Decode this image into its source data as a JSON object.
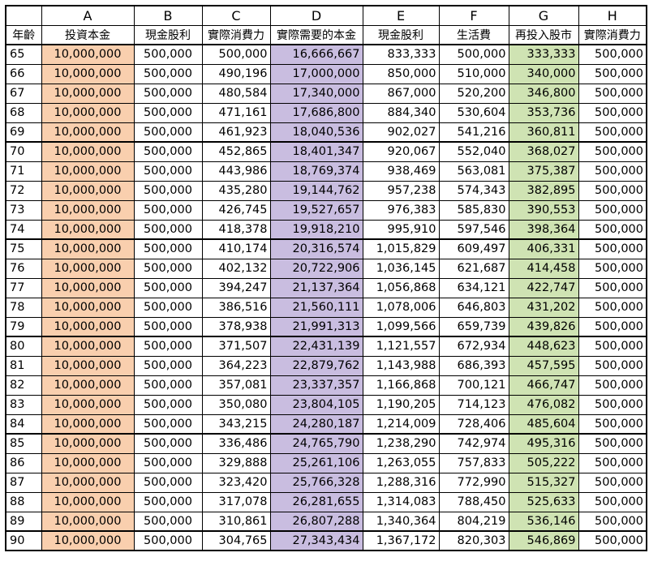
{
  "column_letters": [
    "",
    "A",
    "B",
    "C",
    "D",
    "E",
    "F",
    "G",
    "H"
  ],
  "headers": [
    "年齡",
    "投資本金",
    "現金股利",
    "實際消費力",
    "實際需要的本金",
    "現金股利",
    "生活費",
    "再投入股市",
    "實際消費力"
  ],
  "colors": {
    "A": "#f9cfae",
    "D": "#c9bde0",
    "G": "#cfe3b3"
  },
  "rows": [
    [
      "65",
      "10,000,000",
      "500,000",
      "500,000",
      "16,666,667",
      "833,333",
      "500,000",
      "333,333",
      "500,000"
    ],
    [
      "66",
      "10,000,000",
      "500,000",
      "490,196",
      "17,000,000",
      "850,000",
      "510,000",
      "340,000",
      "500,000"
    ],
    [
      "67",
      "10,000,000",
      "500,000",
      "480,584",
      "17,340,000",
      "867,000",
      "520,200",
      "346,800",
      "500,000"
    ],
    [
      "68",
      "10,000,000",
      "500,000",
      "471,161",
      "17,686,800",
      "884,340",
      "530,604",
      "353,736",
      "500,000"
    ],
    [
      "69",
      "10,000,000",
      "500,000",
      "461,923",
      "18,040,536",
      "902,027",
      "541,216",
      "360,811",
      "500,000"
    ],
    [
      "70",
      "10,000,000",
      "500,000",
      "452,865",
      "18,401,347",
      "920,067",
      "552,040",
      "368,027",
      "500,000"
    ],
    [
      "71",
      "10,000,000",
      "500,000",
      "443,986",
      "18,769,374",
      "938,469",
      "563,081",
      "375,387",
      "500,000"
    ],
    [
      "72",
      "10,000,000",
      "500,000",
      "435,280",
      "19,144,762",
      "957,238",
      "574,343",
      "382,895",
      "500,000"
    ],
    [
      "73",
      "10,000,000",
      "500,000",
      "426,745",
      "19,527,657",
      "976,383",
      "585,830",
      "390,553",
      "500,000"
    ],
    [
      "74",
      "10,000,000",
      "500,000",
      "418,378",
      "19,918,210",
      "995,910",
      "597,546",
      "398,364",
      "500,000"
    ],
    [
      "75",
      "10,000,000",
      "500,000",
      "410,174",
      "20,316,574",
      "1,015,829",
      "609,497",
      "406,331",
      "500,000"
    ],
    [
      "76",
      "10,000,000",
      "500,000",
      "402,132",
      "20,722,906",
      "1,036,145",
      "621,687",
      "414,458",
      "500,000"
    ],
    [
      "77",
      "10,000,000",
      "500,000",
      "394,247",
      "21,137,364",
      "1,056,868",
      "634,121",
      "422,747",
      "500,000"
    ],
    [
      "78",
      "10,000,000",
      "500,000",
      "386,516",
      "21,560,111",
      "1,078,006",
      "646,803",
      "431,202",
      "500,000"
    ],
    [
      "79",
      "10,000,000",
      "500,000",
      "378,938",
      "21,991,313",
      "1,099,566",
      "659,739",
      "439,826",
      "500,000"
    ],
    [
      "80",
      "10,000,000",
      "500,000",
      "371,507",
      "22,431,139",
      "1,121,557",
      "672,934",
      "448,623",
      "500,000"
    ],
    [
      "81",
      "10,000,000",
      "500,000",
      "364,223",
      "22,879,762",
      "1,143,988",
      "686,393",
      "457,595",
      "500,000"
    ],
    [
      "82",
      "10,000,000",
      "500,000",
      "357,081",
      "23,337,357",
      "1,166,868",
      "700,121",
      "466,747",
      "500,000"
    ],
    [
      "83",
      "10,000,000",
      "500,000",
      "350,080",
      "23,804,105",
      "1,190,205",
      "714,123",
      "476,082",
      "500,000"
    ],
    [
      "84",
      "10,000,000",
      "500,000",
      "343,215",
      "24,280,187",
      "1,214,009",
      "728,406",
      "485,604",
      "500,000"
    ],
    [
      "85",
      "10,000,000",
      "500,000",
      "336,486",
      "24,765,790",
      "1,238,290",
      "742,974",
      "495,316",
      "500,000"
    ],
    [
      "86",
      "10,000,000",
      "500,000",
      "329,888",
      "25,261,106",
      "1,263,055",
      "757,833",
      "505,222",
      "500,000"
    ],
    [
      "87",
      "10,000,000",
      "500,000",
      "323,420",
      "25,766,328",
      "1,288,316",
      "772,990",
      "515,327",
      "500,000"
    ],
    [
      "88",
      "10,000,000",
      "500,000",
      "317,078",
      "26,281,655",
      "1,314,083",
      "788,450",
      "525,633",
      "500,000"
    ],
    [
      "89",
      "10,000,000",
      "500,000",
      "310,861",
      "26,807,288",
      "1,340,364",
      "804,219",
      "536,146",
      "500,000"
    ],
    [
      "90",
      "10,000,000",
      "500,000",
      "304,765",
      "27,343,434",
      "1,367,172",
      "820,303",
      "546,869",
      "500,000"
    ]
  ]
}
